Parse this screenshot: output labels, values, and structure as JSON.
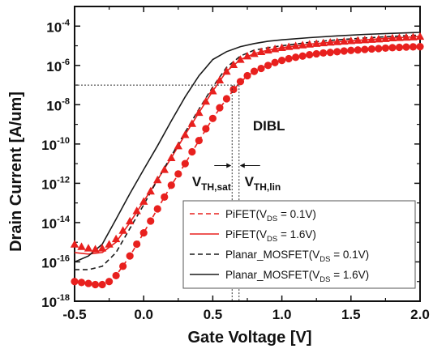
{
  "chart_data": {
    "type": "line",
    "xlabel": "Gate Voltage [V]",
    "ylabel": "Drain Current [A/um]",
    "xlim": [
      -0.5,
      2.0
    ],
    "ylim": [
      1e-18,
      0.001
    ],
    "yscale": "log",
    "x_ticks": [
      {
        "v": -0.5,
        "label": "-0.5"
      },
      {
        "v": 0.0,
        "label": "0.0"
      },
      {
        "v": 0.5,
        "label": "0.5"
      },
      {
        "v": 1.0,
        "label": "1.0"
      },
      {
        "v": 1.5,
        "label": "1.5"
      },
      {
        "v": 2.0,
        "label": "2.0"
      }
    ],
    "y_ticks": [
      {
        "v": -18,
        "base": "10",
        "exp": "-18"
      },
      {
        "v": -16,
        "base": "10",
        "exp": "-16"
      },
      {
        "v": -14,
        "base": "10",
        "exp": "-14"
      },
      {
        "v": -12,
        "base": "10",
        "exp": "-12"
      },
      {
        "v": -10,
        "base": "10",
        "exp": "-10"
      },
      {
        "v": -8,
        "base": "10",
        "exp": "-8"
      },
      {
        "v": -6,
        "base": "10",
        "exp": "-6"
      },
      {
        "v": -4,
        "base": "10",
        "exp": "-4"
      }
    ],
    "annotations": {
      "dibl": "DIBL",
      "vth_sat_main": "V",
      "vth_sat_sub": "TH,sat",
      "vth_lin_main": "V",
      "vth_lin_sub": "TH,lin",
      "ref_current": 1e-07,
      "vth_sat_v": 0.64,
      "vth_lin_v": 0.69
    },
    "legend": {
      "position": "bottom-right",
      "entries": [
        {
          "pre": "PiFET(V",
          "sub": "DS",
          "post": " = 0.1V)",
          "color": "#e8201e",
          "dash": true
        },
        {
          "pre": "PiFET(V",
          "sub": "DS",
          "post": " = 1.6V)",
          "color": "#e8201e",
          "dash": false
        },
        {
          "pre": "Planar_MOSFET(V",
          "sub": "DS",
          "post": " = 0.1V)",
          "color": "#1a1a1a",
          "dash": true
        },
        {
          "pre": "Planar_MOSFET(V",
          "sub": "DS",
          "post": " = 1.6V)",
          "color": "#1a1a1a",
          "dash": false
        }
      ]
    },
    "series": [
      {
        "color": "#e8201e",
        "style": "dashed",
        "x": [
          -0.5,
          -0.4,
          -0.3,
          -0.2,
          -0.1,
          0.0,
          0.1,
          0.2,
          0.3,
          0.4,
          0.5,
          0.6,
          0.7,
          0.8,
          0.9,
          1.0,
          1.2,
          1.4,
          1.6,
          1.8,
          2.0
        ],
        "y": [
          1e-17,
          8e-18,
          7e-18,
          2e-17,
          2e-16,
          3e-15,
          5e-14,
          8e-13,
          1e-11,
          1.5e-10,
          2e-09,
          2e-08,
          1.5e-07,
          5e-07,
          1e-06,
          1.8e-06,
          3.5e-06,
          5e-06,
          6.5e-06,
          8e-06,
          9e-06
        ]
      },
      {
        "color": "#e8201e",
        "style": "solid",
        "x": [
          -0.5,
          -0.4,
          -0.3,
          -0.2,
          -0.1,
          0.0,
          0.1,
          0.2,
          0.3,
          0.4,
          0.5,
          0.6,
          0.7,
          0.8,
          0.9,
          1.0,
          1.2,
          1.4,
          1.6,
          1.8,
          2.0
        ],
        "y": [
          3e-16,
          2.5e-16,
          3e-16,
          1e-15,
          1e-14,
          1.2e-13,
          1.5e-12,
          2e-11,
          3e-10,
          4e-09,
          5e-08,
          5e-07,
          2e-06,
          4e-06,
          6e-06,
          8e-06,
          1.2e-05,
          1.6e-05,
          2e-05,
          2.5e-05,
          3e-05
        ]
      },
      {
        "color": "#1a1a1a",
        "style": "dashed",
        "x": [
          -0.5,
          -0.4,
          -0.3,
          -0.2,
          -0.1,
          0.0,
          0.1,
          0.2,
          0.3,
          0.4,
          0.5,
          0.6,
          0.7,
          0.8,
          0.9,
          1.0,
          1.2,
          1.4,
          1.6,
          1.8,
          2.0
        ],
        "y": [
          4e-17,
          4e-17,
          6e-17,
          3e-16,
          5e-15,
          8e-14,
          1.5e-12,
          2.5e-11,
          4e-10,
          6e-09,
          8e-08,
          8e-07,
          3e-06,
          6e-06,
          8e-06,
          1e-05,
          1.5e-05,
          2e-05,
          2.5e-05,
          3e-05,
          3.5e-05
        ]
      },
      {
        "color": "#1a1a1a",
        "style": "solid",
        "x": [
          -0.5,
          -0.4,
          -0.3,
          -0.2,
          -0.1,
          0.0,
          0.1,
          0.2,
          0.3,
          0.4,
          0.5,
          0.6,
          0.7,
          0.8,
          0.9,
          1.0,
          1.2,
          1.4,
          1.6,
          1.8,
          2.0
        ],
        "y": [
          1e-16,
          2e-16,
          8e-16,
          1.5e-14,
          3e-13,
          5e-12,
          8e-11,
          1.5e-09,
          2.5e-08,
          3e-07,
          2e-06,
          5e-06,
          9e-06,
          1.3e-05,
          1.7e-05,
          2e-05,
          2.6e-05,
          3.2e-05,
          3.8e-05,
          4.3e-05,
          4.8e-05
        ]
      },
      {
        "color": "#e8201e",
        "marker": "circle",
        "x": [
          -0.5,
          -0.45,
          -0.4,
          -0.35,
          -0.3,
          -0.25,
          -0.2,
          -0.15,
          -0.1,
          -0.05,
          0.0,
          0.05,
          0.1,
          0.15,
          0.2,
          0.25,
          0.3,
          0.35,
          0.4,
          0.45,
          0.5,
          0.55,
          0.6,
          0.65,
          0.7,
          0.75,
          0.8,
          0.85,
          0.9,
          0.95,
          1.0,
          1.05,
          1.1,
          1.15,
          1.2,
          1.25,
          1.3,
          1.35,
          1.4,
          1.45,
          1.5,
          1.55,
          1.6,
          1.65,
          1.7,
          1.75,
          1.8,
          1.85,
          1.9,
          1.95,
          2.0
        ],
        "y": [
          1e-17,
          9e-18,
          8e-18,
          7e-18,
          7e-18,
          1e-17,
          2e-17,
          6e-17,
          2e-16,
          8e-16,
          3e-15,
          1.2e-14,
          5e-14,
          2e-13,
          8e-13,
          3e-12,
          1e-11,
          4e-11,
          1.5e-10,
          6e-10,
          2e-09,
          7e-09,
          2e-08,
          6e-08,
          1.5e-07,
          3e-07,
          5e-07,
          7e-07,
          1e-06,
          1.4e-06,
          1.8e-06,
          2.2e-06,
          2.6e-06,
          3e-06,
          3.5e-06,
          3.9e-06,
          4.3e-06,
          4.6e-06,
          5e-06,
          5.4e-06,
          5.8e-06,
          6.1e-06,
          6.5e-06,
          6.9e-06,
          7.2e-06,
          7.6e-06,
          8e-06,
          8.3e-06,
          8.6e-06,
          8.8e-06,
          9e-06
        ]
      },
      {
        "color": "#e8201e",
        "marker": "triangle",
        "x": [
          -0.5,
          -0.45,
          -0.4,
          -0.35,
          -0.3,
          -0.25,
          -0.2,
          -0.15,
          -0.1,
          -0.05,
          0.0,
          0.05,
          0.1,
          0.15,
          0.2,
          0.25,
          0.3,
          0.35,
          0.4,
          0.45,
          0.5,
          0.55,
          0.6,
          0.65,
          0.7,
          0.75,
          0.8,
          0.85,
          0.9,
          0.95,
          1.0,
          1.05,
          1.1,
          1.15,
          1.2,
          1.25,
          1.3,
          1.35,
          1.4,
          1.45,
          1.5,
          1.55,
          1.6,
          1.65,
          1.7,
          1.75,
          1.8,
          1.85,
          1.9,
          1.95,
          2.0
        ],
        "y": [
          8e-16,
          6e-16,
          5e-16,
          4.5e-16,
          5e-16,
          8e-16,
          1.5e-15,
          4e-15,
          1.2e-14,
          4e-14,
          1.2e-13,
          4e-13,
          1.5e-12,
          5e-12,
          2e-11,
          8e-11,
          3e-10,
          1.1e-09,
          4e-09,
          1.5e-08,
          5e-08,
          1.8e-07,
          5e-07,
          1.1e-06,
          2e-06,
          3e-06,
          4e-06,
          5e-06,
          6e-06,
          7e-06,
          8e-06,
          9e-06,
          1e-05,
          1.1e-05,
          1.2e-05,
          1.3e-05,
          1.4e-05,
          1.5e-05,
          1.6e-05,
          1.7e-05,
          1.8e-05,
          1.9e-05,
          2e-05,
          2.1e-05,
          2.2e-05,
          2.3e-05,
          2.5e-05,
          2.6e-05,
          2.7e-05,
          2.8e-05,
          3e-05
        ]
      }
    ]
  }
}
